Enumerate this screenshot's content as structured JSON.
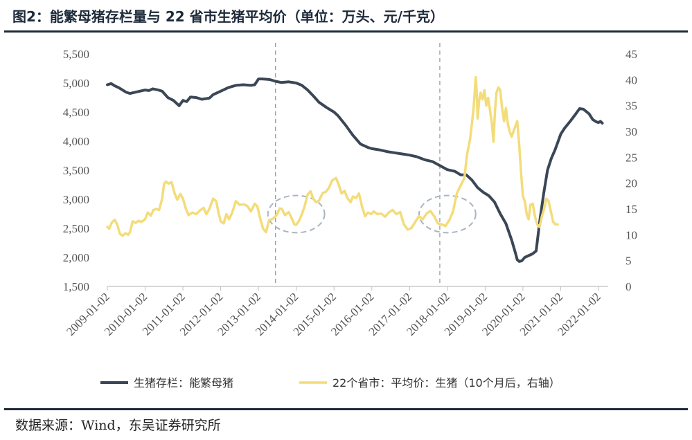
{
  "header": {
    "title": "图2：能繁母猪存栏量与 22 省市生猪平均价（单位：万头、元/千克）"
  },
  "footer": {
    "source": "数据来源：Wind，东吴证券研究所"
  },
  "colors": {
    "sows": "#3b4756",
    "price": "#f3dc7a",
    "axis": "#bfbfbf",
    "dashed": "#9a9a9a",
    "ellipse": "#a9b4c2"
  },
  "chart_data": {
    "type": "line",
    "title": "图2：能繁母猪存栏量与 22 省市生猪平均价（单位：万头、元/千克）",
    "x_categories": [
      "2009-01-02",
      "2010-01-02",
      "2011-01-02",
      "2012-01-02",
      "2013-01-02",
      "2014-01-02",
      "2015-01-02",
      "2016-01-02",
      "2017-01-02",
      "2018-01-02",
      "2019-01-02",
      "2020-01-02",
      "2021-01-02",
      "2022-01-02"
    ],
    "x_range": [
      2009.0,
      2022.0
    ],
    "y_left": {
      "range": [
        1500,
        5500
      ],
      "ticks": [
        "1,500",
        "2,000",
        "2,500",
        "3,000",
        "3,500",
        "4,000",
        "4,500",
        "5,000",
        "5,500"
      ]
    },
    "y_right": {
      "range": [
        0,
        45
      ],
      "ticks": [
        "0",
        "5",
        "10",
        "15",
        "20",
        "25",
        "30",
        "35",
        "40",
        "45"
      ]
    },
    "reference_lines_x": [
      2013.45,
      2017.8
    ],
    "highlight_ellipses": [
      {
        "center": [
          2014.0,
          14.0
        ],
        "radius": [
          0.75,
          3.6
        ]
      },
      {
        "center": [
          2018.0,
          14.0
        ],
        "radius": [
          0.75,
          3.6
        ]
      }
    ],
    "series": [
      {
        "name": "生猪存栏：能繁母猪",
        "axis": "left",
        "points": [
          [
            2009.0,
            4970
          ],
          [
            2009.1,
            4990
          ],
          [
            2009.2,
            4950
          ],
          [
            2009.3,
            4920
          ],
          [
            2009.5,
            4840
          ],
          [
            2009.6,
            4820
          ],
          [
            2009.8,
            4850
          ],
          [
            2010.0,
            4880
          ],
          [
            2010.1,
            4870
          ],
          [
            2010.2,
            4900
          ],
          [
            2010.35,
            4880
          ],
          [
            2010.45,
            4860
          ],
          [
            2010.6,
            4750
          ],
          [
            2010.75,
            4700
          ],
          [
            2010.9,
            4610
          ],
          [
            2011.0,
            4700
          ],
          [
            2011.1,
            4680
          ],
          [
            2011.2,
            4760
          ],
          [
            2011.35,
            4750
          ],
          [
            2011.5,
            4720
          ],
          [
            2011.7,
            4740
          ],
          [
            2011.8,
            4800
          ],
          [
            2012.0,
            4860
          ],
          [
            2012.2,
            4920
          ],
          [
            2012.4,
            4960
          ],
          [
            2012.6,
            4970
          ],
          [
            2012.8,
            4960
          ],
          [
            2012.9,
            4970
          ],
          [
            2013.0,
            5070
          ],
          [
            2013.1,
            5070
          ],
          [
            2013.3,
            5060
          ],
          [
            2013.45,
            5030
          ],
          [
            2013.6,
            5010
          ],
          [
            2013.8,
            5020
          ],
          [
            2014.0,
            5000
          ],
          [
            2014.15,
            4960
          ],
          [
            2014.3,
            4880
          ],
          [
            2014.45,
            4780
          ],
          [
            2014.6,
            4670
          ],
          [
            2014.8,
            4580
          ],
          [
            2015.0,
            4500
          ],
          [
            2015.1,
            4440
          ],
          [
            2015.3,
            4280
          ],
          [
            2015.5,
            4100
          ],
          [
            2015.7,
            3950
          ],
          [
            2015.9,
            3890
          ],
          [
            2016.0,
            3870
          ],
          [
            2016.2,
            3850
          ],
          [
            2016.4,
            3820
          ],
          [
            2016.6,
            3800
          ],
          [
            2016.8,
            3780
          ],
          [
            2017.0,
            3760
          ],
          [
            2017.2,
            3730
          ],
          [
            2017.4,
            3680
          ],
          [
            2017.6,
            3650
          ],
          [
            2017.8,
            3580
          ],
          [
            2018.0,
            3510
          ],
          [
            2018.2,
            3480
          ],
          [
            2018.35,
            3420
          ],
          [
            2018.5,
            3420
          ],
          [
            2018.65,
            3330
          ],
          [
            2018.8,
            3200
          ],
          [
            2018.95,
            3120
          ],
          [
            2019.1,
            3060
          ],
          [
            2019.25,
            2950
          ],
          [
            2019.4,
            2750
          ],
          [
            2019.55,
            2580
          ],
          [
            2019.7,
            2300
          ],
          [
            2019.8,
            2080
          ],
          [
            2019.85,
            1960
          ],
          [
            2019.9,
            1930
          ],
          [
            2019.97,
            1940
          ],
          [
            2020.05,
            2000
          ],
          [
            2020.15,
            2030
          ],
          [
            2020.25,
            2060
          ],
          [
            2020.35,
            2110
          ],
          [
            2020.45,
            2650
          ],
          [
            2020.55,
            3100
          ],
          [
            2020.65,
            3500
          ],
          [
            2020.75,
            3700
          ],
          [
            2020.85,
            3850
          ],
          [
            2021.0,
            4120
          ],
          [
            2021.1,
            4220
          ],
          [
            2021.25,
            4340
          ],
          [
            2021.4,
            4470
          ],
          [
            2021.5,
            4560
          ],
          [
            2021.6,
            4550
          ],
          [
            2021.75,
            4470
          ],
          [
            2021.85,
            4370
          ],
          [
            2021.95,
            4330
          ],
          [
            2022.0,
            4320
          ],
          [
            2022.05,
            4340
          ],
          [
            2022.1,
            4310
          ]
        ]
      },
      {
        "name": "22个省市：平均价：生猪（10个月后，右轴）",
        "axis": "right",
        "points": [
          [
            2009.0,
            11.5
          ],
          [
            2009.05,
            11.2
          ],
          [
            2009.12,
            12.4
          ],
          [
            2009.2,
            12.9
          ],
          [
            2009.27,
            11.8
          ],
          [
            2009.33,
            10.2
          ],
          [
            2009.4,
            9.8
          ],
          [
            2009.48,
            10.3
          ],
          [
            2009.55,
            10.0
          ],
          [
            2009.6,
            10.5
          ],
          [
            2009.67,
            12.6
          ],
          [
            2009.75,
            12.3
          ],
          [
            2009.82,
            12.7
          ],
          [
            2009.9,
            12.5
          ],
          [
            2010.0,
            13.0
          ],
          [
            2010.07,
            14.3
          ],
          [
            2010.15,
            13.7
          ],
          [
            2010.22,
            14.8
          ],
          [
            2010.3,
            15.0
          ],
          [
            2010.37,
            14.8
          ],
          [
            2010.45,
            17.0
          ],
          [
            2010.5,
            19.8
          ],
          [
            2010.55,
            20.3
          ],
          [
            2010.62,
            19.9
          ],
          [
            2010.7,
            20.2
          ],
          [
            2010.78,
            18.0
          ],
          [
            2010.85,
            16.8
          ],
          [
            2010.93,
            17.9
          ],
          [
            2011.0,
            17.0
          ],
          [
            2011.08,
            15.0
          ],
          [
            2011.15,
            13.8
          ],
          [
            2011.25,
            14.3
          ],
          [
            2011.35,
            14.0
          ],
          [
            2011.45,
            14.7
          ],
          [
            2011.55,
            15.2
          ],
          [
            2011.62,
            14.0
          ],
          [
            2011.7,
            15.0
          ],
          [
            2011.8,
            17.0
          ],
          [
            2011.88,
            16.5
          ],
          [
            2011.95,
            14.0
          ],
          [
            2012.0,
            12.6
          ],
          [
            2012.08,
            12.2
          ],
          [
            2012.15,
            14.0
          ],
          [
            2012.22,
            13.0
          ],
          [
            2012.3,
            14.2
          ],
          [
            2012.4,
            16.5
          ],
          [
            2012.5,
            15.8
          ],
          [
            2012.6,
            15.9
          ],
          [
            2012.7,
            15.6
          ],
          [
            2012.8,
            14.5
          ],
          [
            2012.9,
            16.0
          ],
          [
            2012.97,
            15.5
          ],
          [
            2013.05,
            13.0
          ],
          [
            2013.12,
            11.2
          ],
          [
            2013.2,
            10.5
          ],
          [
            2013.28,
            12.8
          ],
          [
            2013.38,
            13.1
          ],
          [
            2013.48,
            13.8
          ],
          [
            2013.56,
            15.1
          ],
          [
            2013.62,
            15.0
          ],
          [
            2013.7,
            13.8
          ],
          [
            2013.8,
            14.4
          ],
          [
            2013.88,
            13.2
          ],
          [
            2013.95,
            12.0
          ],
          [
            2014.0,
            11.9
          ],
          [
            2014.08,
            12.8
          ],
          [
            2014.15,
            14.0
          ],
          [
            2014.22,
            15.5
          ],
          [
            2014.3,
            17.8
          ],
          [
            2014.38,
            18.4
          ],
          [
            2014.45,
            17.0
          ],
          [
            2014.52,
            16.3
          ],
          [
            2014.6,
            16.6
          ],
          [
            2014.7,
            18.1
          ],
          [
            2014.78,
            18.3
          ],
          [
            2014.86,
            19.0
          ],
          [
            2014.95,
            20.5
          ],
          [
            2015.05,
            21.0
          ],
          [
            2015.12,
            19.8
          ],
          [
            2015.2,
            18.0
          ],
          [
            2015.28,
            18.5
          ],
          [
            2015.36,
            17.0
          ],
          [
            2015.44,
            16.3
          ],
          [
            2015.5,
            17.4
          ],
          [
            2015.58,
            17.1
          ],
          [
            2015.66,
            18.0
          ],
          [
            2015.74,
            15.5
          ],
          [
            2015.82,
            13.6
          ],
          [
            2015.9,
            14.3
          ],
          [
            2015.98,
            14.0
          ],
          [
            2016.05,
            14.5
          ],
          [
            2016.15,
            14.0
          ],
          [
            2016.25,
            14.1
          ],
          [
            2016.35,
            13.5
          ],
          [
            2016.45,
            14.3
          ],
          [
            2016.55,
            14.8
          ],
          [
            2016.65,
            14.0
          ],
          [
            2016.75,
            14.4
          ],
          [
            2016.85,
            12.0
          ],
          [
            2016.95,
            11.0
          ],
          [
            2017.05,
            11.3
          ],
          [
            2017.15,
            12.5
          ],
          [
            2017.25,
            13.6
          ],
          [
            2017.35,
            13.0
          ],
          [
            2017.45,
            14.1
          ],
          [
            2017.55,
            14.6
          ],
          [
            2017.65,
            13.6
          ],
          [
            2017.75,
            12.2
          ],
          [
            2017.85,
            12.0
          ],
          [
            2017.95,
            11.7
          ],
          [
            2018.05,
            12.8
          ],
          [
            2018.15,
            14.5
          ],
          [
            2018.25,
            18.0
          ],
          [
            2018.35,
            19.5
          ],
          [
            2018.45,
            21.0
          ],
          [
            2018.52,
            25.5
          ],
          [
            2018.6,
            28.5
          ],
          [
            2018.65,
            31.5
          ],
          [
            2018.7,
            35.0
          ],
          [
            2018.75,
            40.5
          ],
          [
            2018.78,
            37.0
          ],
          [
            2018.8,
            32.5
          ],
          [
            2018.84,
            36.0
          ],
          [
            2018.88,
            37.5
          ],
          [
            2018.93,
            36.2
          ],
          [
            2018.98,
            38.0
          ],
          [
            2019.03,
            35.0
          ],
          [
            2019.08,
            36.5
          ],
          [
            2019.13,
            34.0
          ],
          [
            2019.18,
            31.5
          ],
          [
            2019.22,
            28.0
          ],
          [
            2019.26,
            34.0
          ],
          [
            2019.3,
            37.5
          ],
          [
            2019.35,
            38.5
          ],
          [
            2019.4,
            38.0
          ],
          [
            2019.45,
            34.5
          ],
          [
            2019.5,
            32.0
          ],
          [
            2019.55,
            34.5
          ],
          [
            2019.6,
            31.5
          ],
          [
            2019.65,
            30.0
          ],
          [
            2019.7,
            29.0
          ],
          [
            2019.75,
            30.0
          ],
          [
            2019.8,
            31.0
          ],
          [
            2019.85,
            32.0
          ],
          [
            2019.9,
            27.5
          ],
          [
            2019.95,
            22.0
          ],
          [
            2020.0,
            17.5
          ],
          [
            2020.05,
            16.5
          ],
          [
            2020.1,
            14.0
          ],
          [
            2020.15,
            13.0
          ],
          [
            2020.2,
            15.8
          ],
          [
            2020.26,
            16.0
          ],
          [
            2020.32,
            13.5
          ],
          [
            2020.38,
            12.0
          ],
          [
            2020.44,
            11.5
          ],
          [
            2020.5,
            13.5
          ],
          [
            2020.56,
            15.0
          ],
          [
            2020.62,
            17.0
          ],
          [
            2020.68,
            16.5
          ],
          [
            2020.74,
            14.5
          ],
          [
            2020.8,
            12.5
          ],
          [
            2020.86,
            12.0
          ],
          [
            2020.92,
            12.0
          ]
        ]
      }
    ],
    "legend": {
      "placement": "bottom",
      "items": [
        "生猪存栏：能繁母猪",
        "22个省市：平均价：生猪（10个月后，右轴）"
      ]
    }
  }
}
